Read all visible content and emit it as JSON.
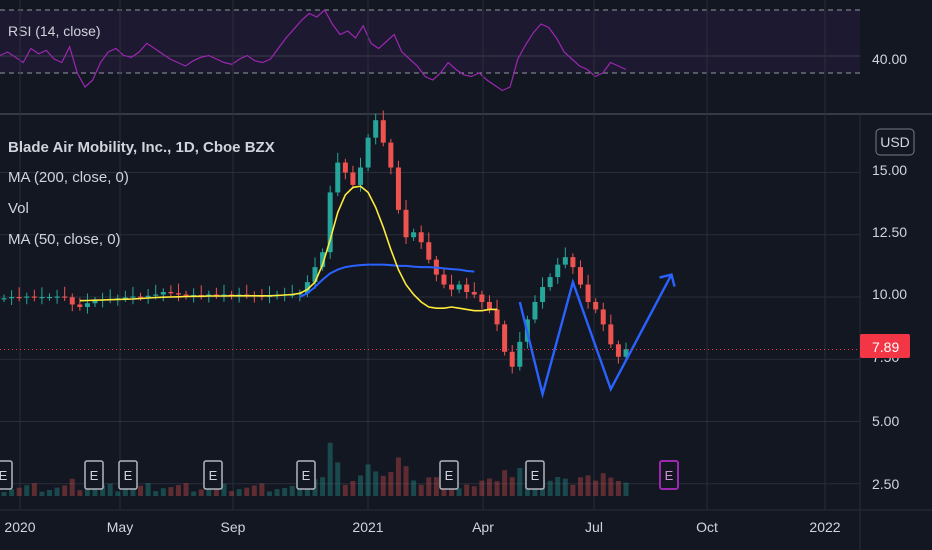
{
  "colors": {
    "background": "#131722",
    "grid": "#2a2e39",
    "text": "#d1d4dc",
    "up": "#26a69a",
    "down": "#ef5350",
    "rsi": "#9c27b0",
    "ma200": "#2962ff",
    "ma50": "#ffeb3b",
    "pattern": "#2962ff",
    "price_label": "#f23645",
    "earnings_future": "#9c27b0"
  },
  "rsi_panel": {
    "title": "RSI (14, close)",
    "level_label": "40.00",
    "upper": 70,
    "lower": 30,
    "range": [
      26,
      74
    ],
    "values": [
      48,
      50,
      47,
      44,
      52,
      49,
      51,
      46,
      44,
      53,
      38,
      30,
      34,
      44,
      50,
      52,
      48,
      47,
      50,
      55,
      52,
      49,
      46,
      44,
      42,
      45,
      47,
      48,
      46,
      44,
      43,
      46,
      48,
      45,
      44,
      46,
      52,
      58,
      63,
      68,
      72,
      70,
      74,
      66,
      60,
      62,
      58,
      65,
      55,
      52,
      56,
      60,
      50,
      46,
      42,
      36,
      34,
      38,
      44,
      40,
      37,
      36,
      38,
      34,
      31,
      28,
      30,
      46,
      54,
      61,
      66,
      64,
      58,
      50,
      46,
      42,
      40,
      36,
      38,
      44,
      42,
      40
    ]
  },
  "header": {
    "symbol": "Blade Air Mobility, Inc., 1D, Cboe BZX",
    "indicators": [
      "MA (200, close, 0)",
      "Vol",
      "MA (50, close, 0)"
    ]
  },
  "axis": {
    "currency": "USD",
    "y_ticks": [
      "15.00",
      "12.50",
      "10.00",
      "7.50",
      "5.00",
      "2.50"
    ],
    "x_ticks": [
      "2020",
      "May",
      "Sep",
      "2021",
      "Apr",
      "Jul",
      "Oct",
      "2022"
    ]
  },
  "current_price": "7.89",
  "earnings_markers": [
    {
      "label": "E",
      "future": false
    },
    {
      "label": "E",
      "future": false
    },
    {
      "label": "E",
      "future": false
    },
    {
      "label": "E",
      "future": false
    },
    {
      "label": "E",
      "future": false
    },
    {
      "label": "E",
      "future": false
    },
    {
      "label": "E",
      "future": false
    },
    {
      "label": "E",
      "future": true
    }
  ],
  "chart_data": {
    "type": "candlestick",
    "title": "Blade Air Mobility, Inc., 1D, Cboe BZX",
    "ylabel": "USD",
    "ylim": [
      1.8,
      17.5
    ],
    "close": [
      9.95,
      10,
      9.98,
      10.02,
      9.98,
      10,
      10,
      10.02,
      9.99,
      9.7,
      9.6,
      9.75,
      9.85,
      9.9,
      9.92,
      9.95,
      9.98,
      10.02,
      10,
      10.05,
      10.1,
      10.2,
      10.15,
      10.1,
      10.05,
      10.08,
      10.05,
      10.1,
      10.08,
      10.1,
      10.05,
      10.1,
      10.08,
      10.05,
      10.02,
      10.05,
      10.1,
      10.1,
      10.1,
      10.15,
      10.6,
      11.2,
      11.8,
      14.2,
      15.4,
      15.0,
      14.5,
      15.2,
      16.4,
      17.1,
      16.2,
      15.2,
      13.5,
      12.4,
      12.6,
      12.2,
      11.5,
      10.9,
      10.5,
      10.3,
      10.5,
      10.2,
      10.1,
      9.8,
      9.5,
      8.9,
      7.8,
      7.2,
      8.2,
      9.1,
      9.8,
      10.4,
      10.8,
      11.3,
      11.6,
      11.2,
      10.5,
      9.8,
      9.5,
      8.9,
      8.1,
      7.6,
      7.9
    ],
    "ma50": [
      null,
      null,
      null,
      null,
      null,
      null,
      null,
      null,
      null,
      null,
      9.85,
      9.86,
      9.87,
      9.88,
      9.89,
      9.9,
      9.91,
      9.92,
      9.94,
      9.96,
      9.98,
      9.99,
      10.0,
      10.01,
      10.02,
      10.03,
      10.03,
      10.04,
      10.04,
      10.04,
      10.05,
      10.05,
      10.05,
      10.05,
      10.05,
      10.05,
      10.06,
      10.08,
      10.1,
      10.15,
      10.3,
      10.6,
      11.3,
      12.3,
      13.4,
      14.1,
      14.4,
      14.45,
      14.2,
      13.6,
      12.8,
      11.9,
      11.1,
      10.5,
      10.1,
      9.8,
      9.6,
      9.55,
      9.55,
      9.6,
      9.55,
      9.5,
      9.45,
      9.45,
      9.5,
      9.5
    ],
    "ma200": [
      null,
      null,
      null,
      null,
      null,
      null,
      null,
      null,
      null,
      null,
      null,
      null,
      null,
      null,
      null,
      null,
      null,
      null,
      null,
      null,
      null,
      null,
      null,
      null,
      null,
      null,
      null,
      null,
      null,
      null,
      null,
      null,
      null,
      null,
      null,
      null,
      null,
      null,
      null,
      10.0,
      10.15,
      10.4,
      10.7,
      10.95,
      11.1,
      11.2,
      11.25,
      11.28,
      11.3,
      11.3,
      11.3,
      11.28,
      11.25,
      11.25,
      11.22,
      11.2,
      11.2,
      11.18,
      11.15,
      11.12,
      11.1,
      11.05,
      11.02
    ],
    "pattern_points": [
      9.8,
      6.1,
      10.6,
      6.3,
      10.9
    ],
    "annotation": "W"
  }
}
